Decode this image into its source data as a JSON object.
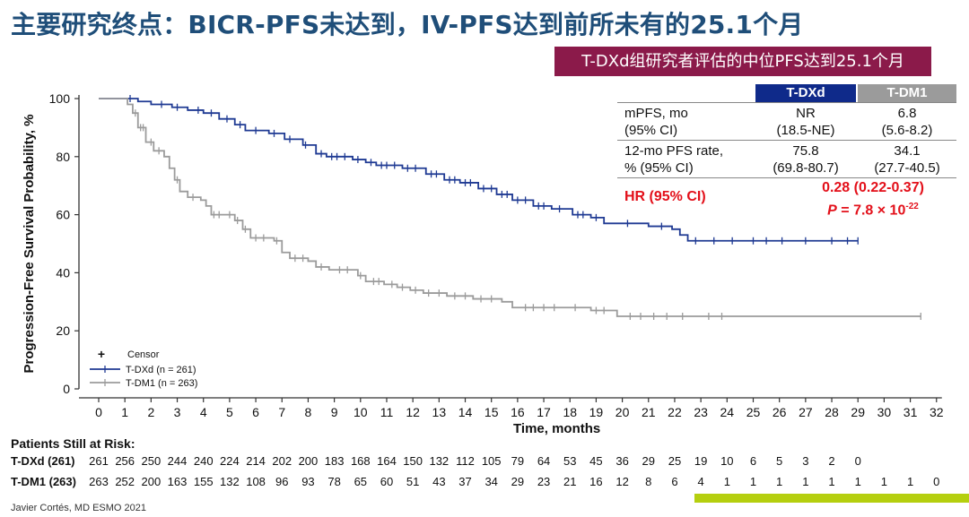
{
  "title": "主要研究终点：BICR-PFS未达到，IV-PFS达到前所未有的25.1个月",
  "subtitle": "T-DXd组研究者评估的中位PFS达到25.1个月",
  "colors": {
    "tdxd": "#1f3a93",
    "tdm1": "#9b9b9b",
    "title": "#1f4e79",
    "banner": "#8b1a4a",
    "hr": "#e3101a",
    "accent_bar": "#b5cf0f"
  },
  "table": {
    "headers": [
      "T-DXd",
      "T-DM1"
    ],
    "rows": [
      {
        "label1": "mPFS, mo",
        "label2": "(95% CI)",
        "tdxd1": "NR",
        "tdxd2": "(18.5-NE)",
        "tdm11": "6.8",
        "tdm12": "(5.6-8.2)"
      },
      {
        "label1": "12-mo PFS rate,",
        "label2": "% (95% CI)",
        "tdxd1": "75.8",
        "tdxd2": "(69.8-80.7)",
        "tdm11": "34.1",
        "tdm12": "(27.7-40.5)"
      }
    ],
    "hr_label": "HR (95% CI)",
    "hr_value": "0.28 (0.22-0.37)",
    "p_prefix": "P",
    "p_value": " = 7.8 × 10",
    "p_exp": "-22"
  },
  "chart_data": {
    "type": "line",
    "subtype": "kaplan-meier",
    "xlabel": "Time,  months",
    "ylabel": "Progression-Free Survival Probability, %",
    "xlim": [
      0,
      32
    ],
    "ylim": [
      0,
      100
    ],
    "xticks": [
      0,
      1,
      2,
      3,
      4,
      5,
      6,
      7,
      8,
      9,
      10,
      11,
      12,
      13,
      14,
      15,
      16,
      17,
      18,
      19,
      20,
      21,
      22,
      23,
      24,
      25,
      26,
      27,
      28,
      29,
      30,
      31,
      32
    ],
    "yticks": [
      0,
      20,
      40,
      60,
      80,
      100
    ],
    "legend": {
      "position": "bottom-left",
      "censor_label": "Censor",
      "censor_symbol": "+"
    },
    "series": [
      {
        "name": "T-DXd (n = 261)",
        "color": "#1f3a93",
        "points": [
          [
            0,
            100
          ],
          [
            1,
            100
          ],
          [
            1.5,
            99
          ],
          [
            2,
            98
          ],
          [
            2.8,
            97
          ],
          [
            3.4,
            96
          ],
          [
            4,
            95
          ],
          [
            4.6,
            93
          ],
          [
            5.2,
            91
          ],
          [
            5.6,
            89
          ],
          [
            6.5,
            88
          ],
          [
            7.1,
            86
          ],
          [
            7.8,
            84
          ],
          [
            8.3,
            81
          ],
          [
            8.7,
            80
          ],
          [
            9.7,
            79
          ],
          [
            10.2,
            78
          ],
          [
            10.6,
            77
          ],
          [
            11.6,
            76
          ],
          [
            12.5,
            74
          ],
          [
            13.2,
            72
          ],
          [
            13.8,
            71
          ],
          [
            14.5,
            69
          ],
          [
            15.2,
            67
          ],
          [
            15.8,
            65
          ],
          [
            16.6,
            63
          ],
          [
            17.3,
            62
          ],
          [
            18.1,
            60
          ],
          [
            18.8,
            59
          ],
          [
            19.3,
            57
          ],
          [
            21.0,
            56
          ],
          [
            21.9,
            55
          ],
          [
            22.2,
            53
          ],
          [
            22.5,
            51
          ],
          [
            29.0,
            51
          ]
        ],
        "censors": [
          1.2,
          2.4,
          3.0,
          3.8,
          4.3,
          4.9,
          5.4,
          6.0,
          6.7,
          7.3,
          7.9,
          8.5,
          8.9,
          9.1,
          9.4,
          9.9,
          10.4,
          10.8,
          11.0,
          11.3,
          11.8,
          12.1,
          12.7,
          12.9,
          13.4,
          13.6,
          14.0,
          14.2,
          14.7,
          15.0,
          15.4,
          15.6,
          16.0,
          16.3,
          16.8,
          17.0,
          17.6,
          18.3,
          18.5,
          19.0,
          20.2,
          21.5,
          22.8,
          23.5,
          24.2,
          25.0,
          25.5,
          26.1,
          27.0,
          28.0,
          28.6,
          29.0
        ]
      },
      {
        "name": "T-DM1 (n = 263)",
        "color": "#9b9b9b",
        "points": [
          [
            0,
            100
          ],
          [
            1.1,
            98
          ],
          [
            1.3,
            95
          ],
          [
            1.5,
            90
          ],
          [
            1.8,
            85
          ],
          [
            2.1,
            82
          ],
          [
            2.5,
            80
          ],
          [
            2.7,
            76
          ],
          [
            2.9,
            72
          ],
          [
            3.1,
            68
          ],
          [
            3.4,
            66
          ],
          [
            3.9,
            65
          ],
          [
            4.1,
            63
          ],
          [
            4.3,
            60
          ],
          [
            5.2,
            58
          ],
          [
            5.5,
            55
          ],
          [
            5.8,
            52
          ],
          [
            6.7,
            51
          ],
          [
            7.0,
            47
          ],
          [
            7.3,
            45
          ],
          [
            8.0,
            44
          ],
          [
            8.3,
            42
          ],
          [
            8.8,
            41
          ],
          [
            9.9,
            39
          ],
          [
            10.2,
            37
          ],
          [
            10.9,
            36
          ],
          [
            11.4,
            35
          ],
          [
            11.9,
            34
          ],
          [
            12.4,
            33
          ],
          [
            13.3,
            32
          ],
          [
            14.3,
            31
          ],
          [
            15.4,
            30
          ],
          [
            15.8,
            28
          ],
          [
            18.5,
            28
          ],
          [
            18.8,
            27
          ],
          [
            19.5,
            27
          ],
          [
            19.8,
            25
          ],
          [
            31.4,
            25
          ]
        ],
        "censors": [
          1.4,
          1.6,
          1.7,
          2.0,
          2.3,
          3.0,
          3.6,
          4.4,
          4.6,
          5.0,
          5.3,
          5.6,
          6.0,
          6.3,
          6.8,
          7.5,
          7.8,
          8.5,
          9.2,
          9.5,
          10.0,
          10.5,
          10.7,
          11.2,
          11.6,
          12.1,
          12.6,
          13.0,
          13.6,
          14.0,
          14.6,
          15.0,
          16.3,
          16.6,
          17.0,
          17.4,
          18.2,
          19.0,
          19.3,
          20.3,
          20.7,
          21.2,
          21.7,
          22.3,
          23.3,
          23.8,
          31.4
        ]
      }
    ],
    "at_risk": {
      "title": "Patients Still at Risk:",
      "rows": [
        {
          "label": "T-DXd (261)",
          "values": [
            261,
            256,
            250,
            244,
            240,
            224,
            214,
            202,
            200,
            183,
            168,
            164,
            150,
            132,
            112,
            105,
            79,
            64,
            53,
            45,
            36,
            29,
            25,
            19,
            10,
            6,
            5,
            3,
            2,
            0
          ]
        },
        {
          "label": "T-DM1 (263)",
          "values": [
            263,
            252,
            200,
            163,
            155,
            132,
            108,
            96,
            93,
            78,
            65,
            60,
            51,
            43,
            37,
            34,
            29,
            23,
            21,
            16,
            12,
            8,
            6,
            4,
            1,
            1,
            1,
            1,
            1,
            1,
            1,
            1,
            0
          ]
        }
      ]
    }
  },
  "footer": "Javier Cortés, MD ESMO 2021"
}
